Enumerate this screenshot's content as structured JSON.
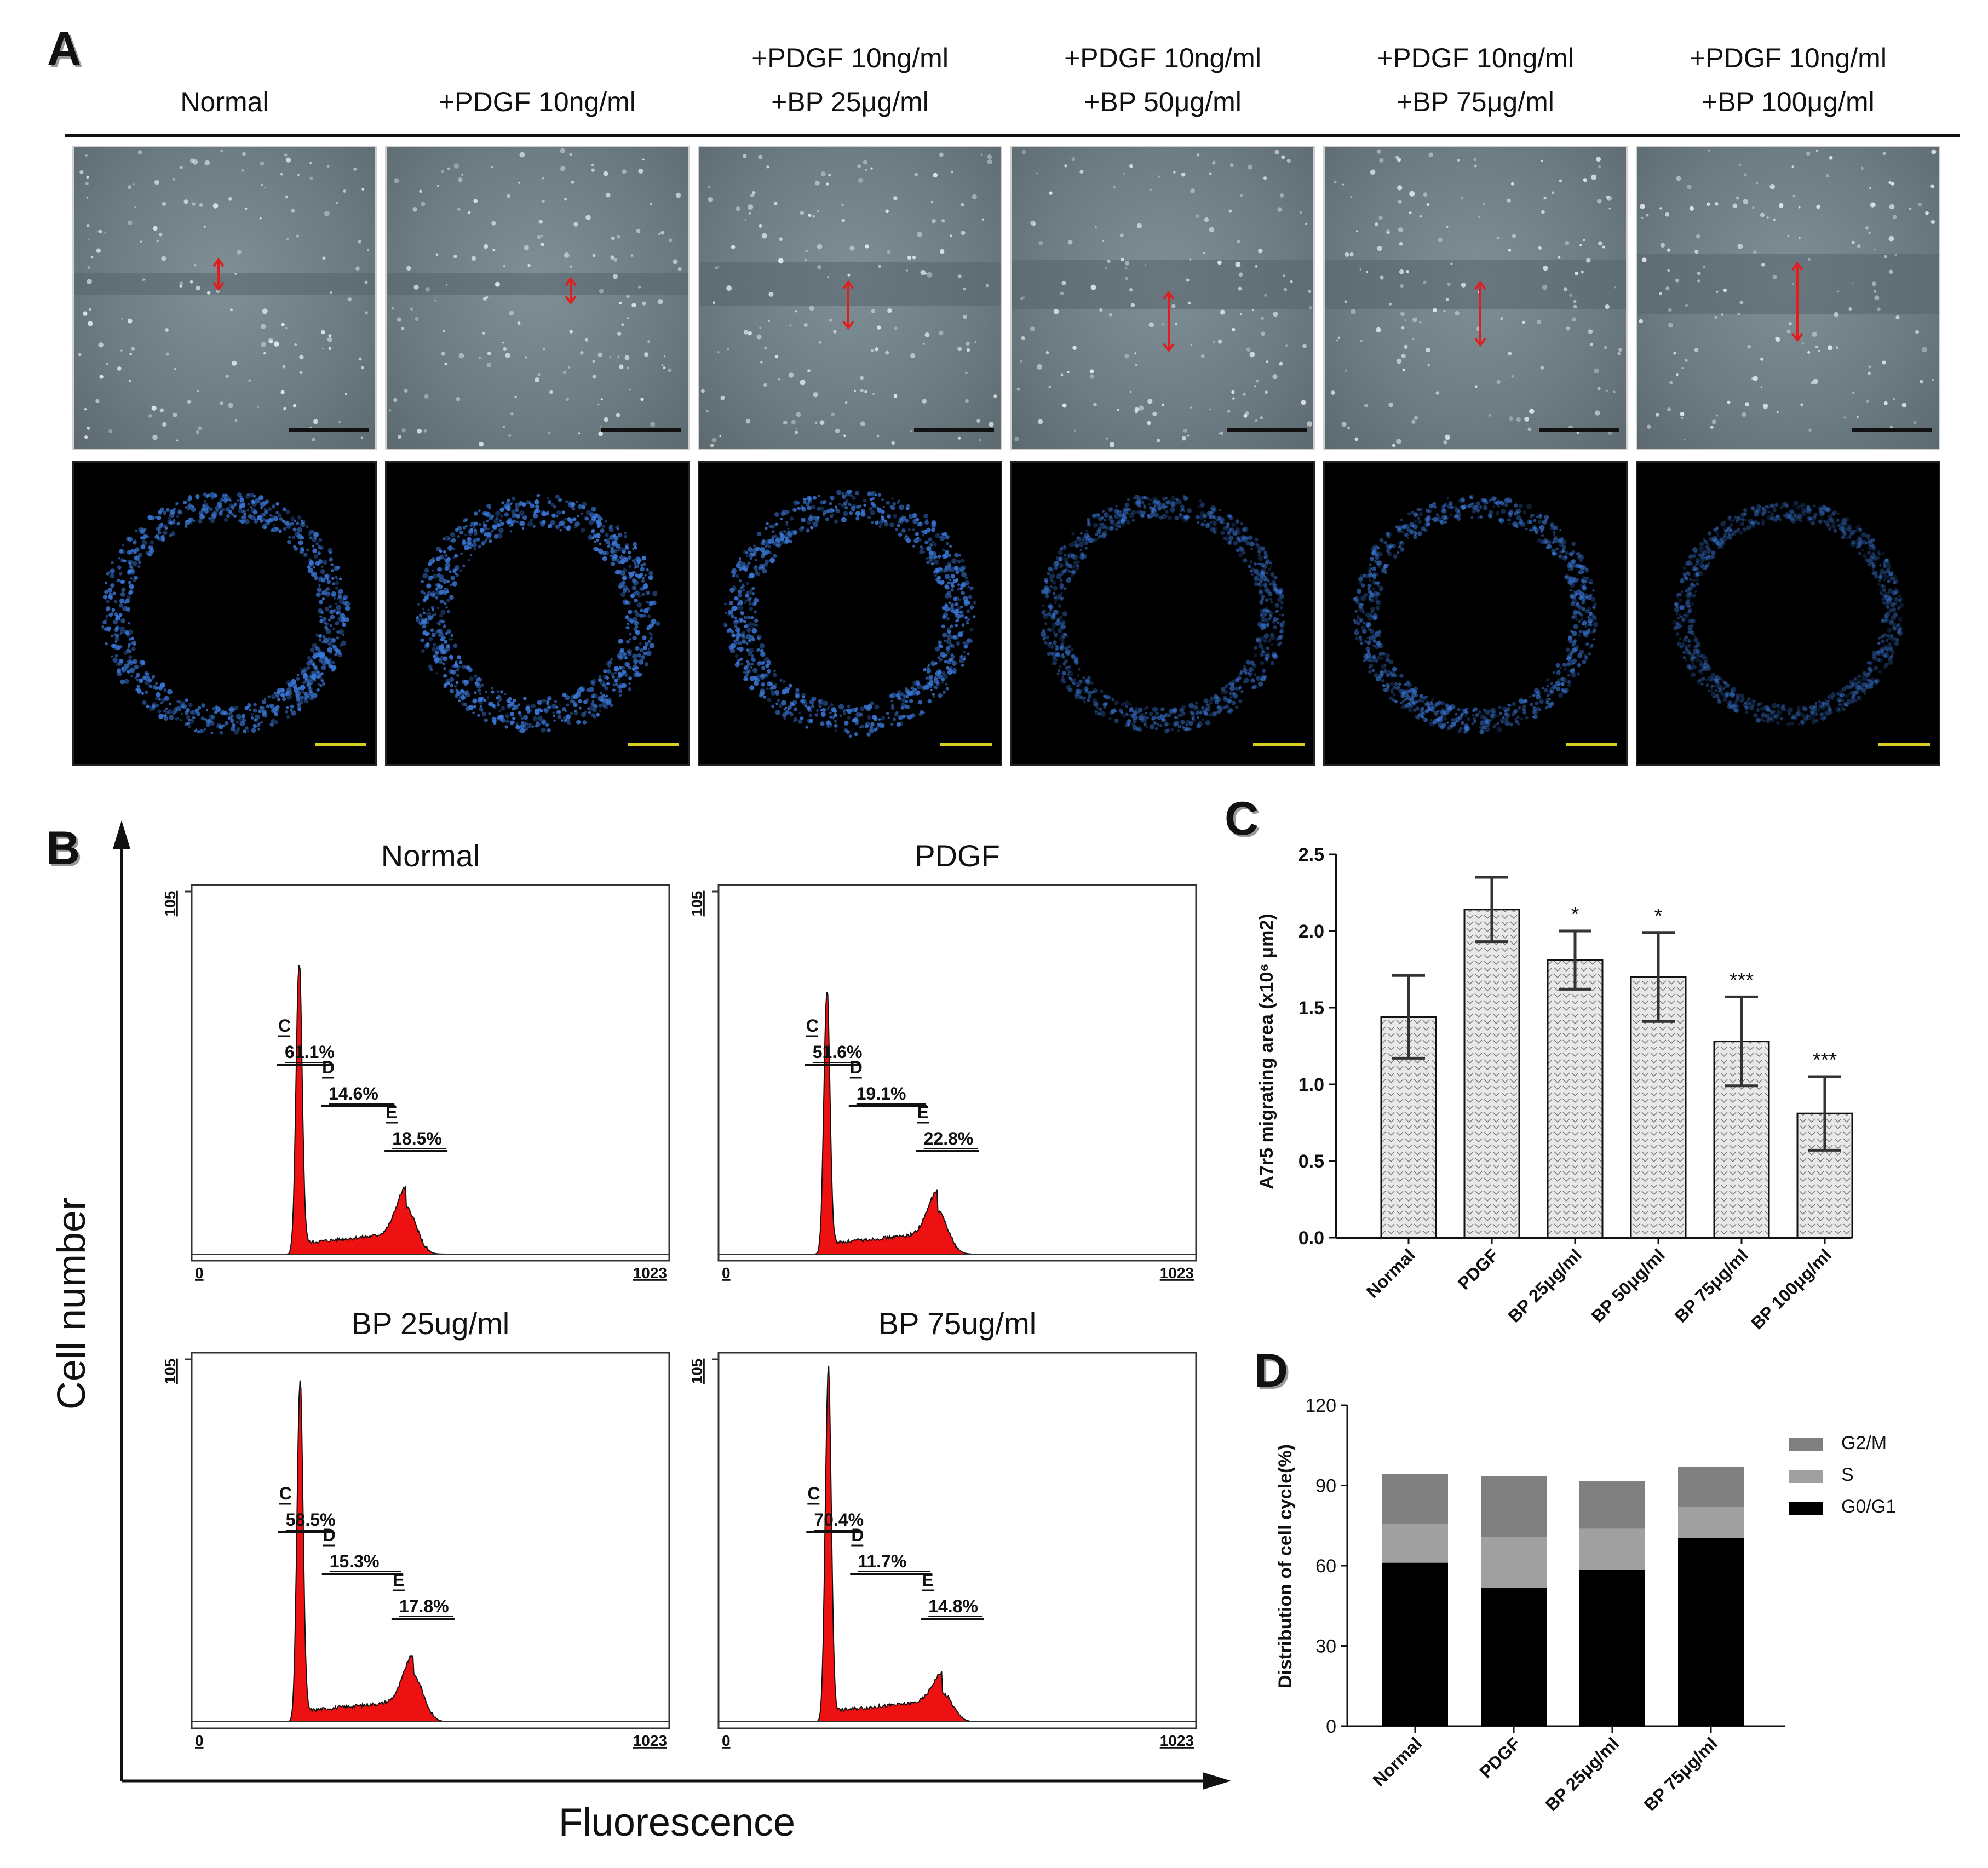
{
  "panels": {
    "a": "A",
    "b": "B",
    "c": "C",
    "d": "D"
  },
  "panel_a": {
    "columns": [
      {
        "line1": "",
        "line2": "Normal"
      },
      {
        "line1": "",
        "line2": "+PDGF 10ng/ml"
      },
      {
        "line1": "+PDGF 10ng/ml",
        "line2": "+BP 25μg/ml"
      },
      {
        "line1": "+PDGF 10ng/ml",
        "line2": "+BP 50μg/ml"
      },
      {
        "line1": "+PDGF 10ng/ml",
        "line2": "+BP 75μg/ml"
      },
      {
        "line1": "+PDGF 10ng/ml",
        "line2": "+BP 100μg/ml"
      }
    ],
    "colors": {
      "tile_gray": "#6f7e85",
      "arrow": "#e01e1e",
      "nuclei": "#3a78d8",
      "scale_yellow": "#d8d020"
    }
  },
  "chart_data": [
    {
      "panel": "B",
      "type": "histogram",
      "xlabel": "Fluorescence",
      "ylabel": "Cell number",
      "subplots": [
        {
          "title": "Normal",
          "ymax_label": "105",
          "xmin_label": "0",
          "xmax_label": "1023",
          "xlim": [
            0,
            1023
          ],
          "peaks": {
            "g1_center": 230,
            "g2_center": 460,
            "g1_height": 0.82,
            "g2_height": 0.13
          },
          "gates": [
            {
              "id": "C",
              "percent": "61.1%"
            },
            {
              "id": "D",
              "percent": "14.6%"
            },
            {
              "id": "E",
              "percent": "18.5%"
            }
          ]
        },
        {
          "title": "PDGF",
          "ymax_label": "105",
          "xmin_label": "0",
          "xmax_label": "1023",
          "xlim": [
            0,
            1023
          ],
          "peaks": {
            "g1_center": 232,
            "g2_center": 470,
            "g1_height": 0.74,
            "g2_height": 0.12
          },
          "gates": [
            {
              "id": "C",
              "percent": "51.6%"
            },
            {
              "id": "D",
              "percent": "19.1%"
            },
            {
              "id": "E",
              "percent": "22.8%"
            }
          ]
        },
        {
          "title": "BP 25ug/ml",
          "ymax_label": "105",
          "xmin_label": "0",
          "xmax_label": "1023",
          "xlim": [
            0,
            1023
          ],
          "peaks": {
            "g1_center": 232,
            "g2_center": 475,
            "g1_height": 0.96,
            "g2_height": 0.13
          },
          "gates": [
            {
              "id": "C",
              "percent": "58.5%"
            },
            {
              "id": "D",
              "percent": "15.3%"
            },
            {
              "id": "E",
              "percent": "17.8%"
            }
          ]
        },
        {
          "title": "BP 75ug/ml",
          "ymax_label": "105",
          "xmin_label": "0",
          "xmax_label": "1023",
          "xlim": [
            0,
            1023
          ],
          "peaks": {
            "g1_center": 235,
            "g2_center": 480,
            "g1_height": 0.99,
            "g2_height": 0.08
          },
          "gates": [
            {
              "id": "C",
              "percent": "70.4%"
            },
            {
              "id": "D",
              "percent": "11.7%"
            },
            {
              "id": "E",
              "percent": "14.8%"
            }
          ]
        }
      ],
      "fill_color": "#ee1111"
    },
    {
      "panel": "C",
      "type": "bar",
      "categories": [
        "Normal",
        "PDGF",
        "BP 25μg/ml",
        "BP 50μg/ml",
        "BP 75μg/ml",
        "BP 100μg/ml"
      ],
      "values": [
        1.44,
        2.14,
        1.81,
        1.7,
        1.28,
        0.81
      ],
      "errors": [
        0.27,
        0.21,
        0.19,
        0.29,
        0.29,
        0.24
      ],
      "significance": [
        "",
        "",
        "*",
        "*",
        "***",
        "***"
      ],
      "ylabel": "A7r5 migrating area (x10⁶ μm2)",
      "ylim": [
        0,
        2.5
      ],
      "yticks": [
        "0.0",
        "0.5",
        "1.0",
        "1.5",
        "2.0",
        "2.5"
      ],
      "bar_color": "#e8e8e8",
      "grid": false
    },
    {
      "panel": "D",
      "type": "bar",
      "stacked": true,
      "categories": [
        "Normal",
        "PDGF",
        "BP 25μg/ml",
        "BP 75μg/ml"
      ],
      "series": [
        {
          "name": "G0/G1",
          "values": [
            61.1,
            51.6,
            58.5,
            70.4
          ],
          "color": "#000000"
        },
        {
          "name": "S",
          "values": [
            14.6,
            19.1,
            15.3,
            11.7
          ],
          "color": "#a0a0a0"
        },
        {
          "name": "G2/M",
          "values": [
            18.5,
            22.8,
            17.8,
            14.8
          ],
          "color": "#808080"
        }
      ],
      "legend_order": [
        "G2/M",
        "S",
        "G0/G1"
      ],
      "ylabel": "Distribution of cell cycle(%)",
      "ylim": [
        0,
        120
      ],
      "yticks": [
        "0",
        "30",
        "60",
        "90",
        "120"
      ],
      "legend": "top-right",
      "grid": false
    }
  ]
}
